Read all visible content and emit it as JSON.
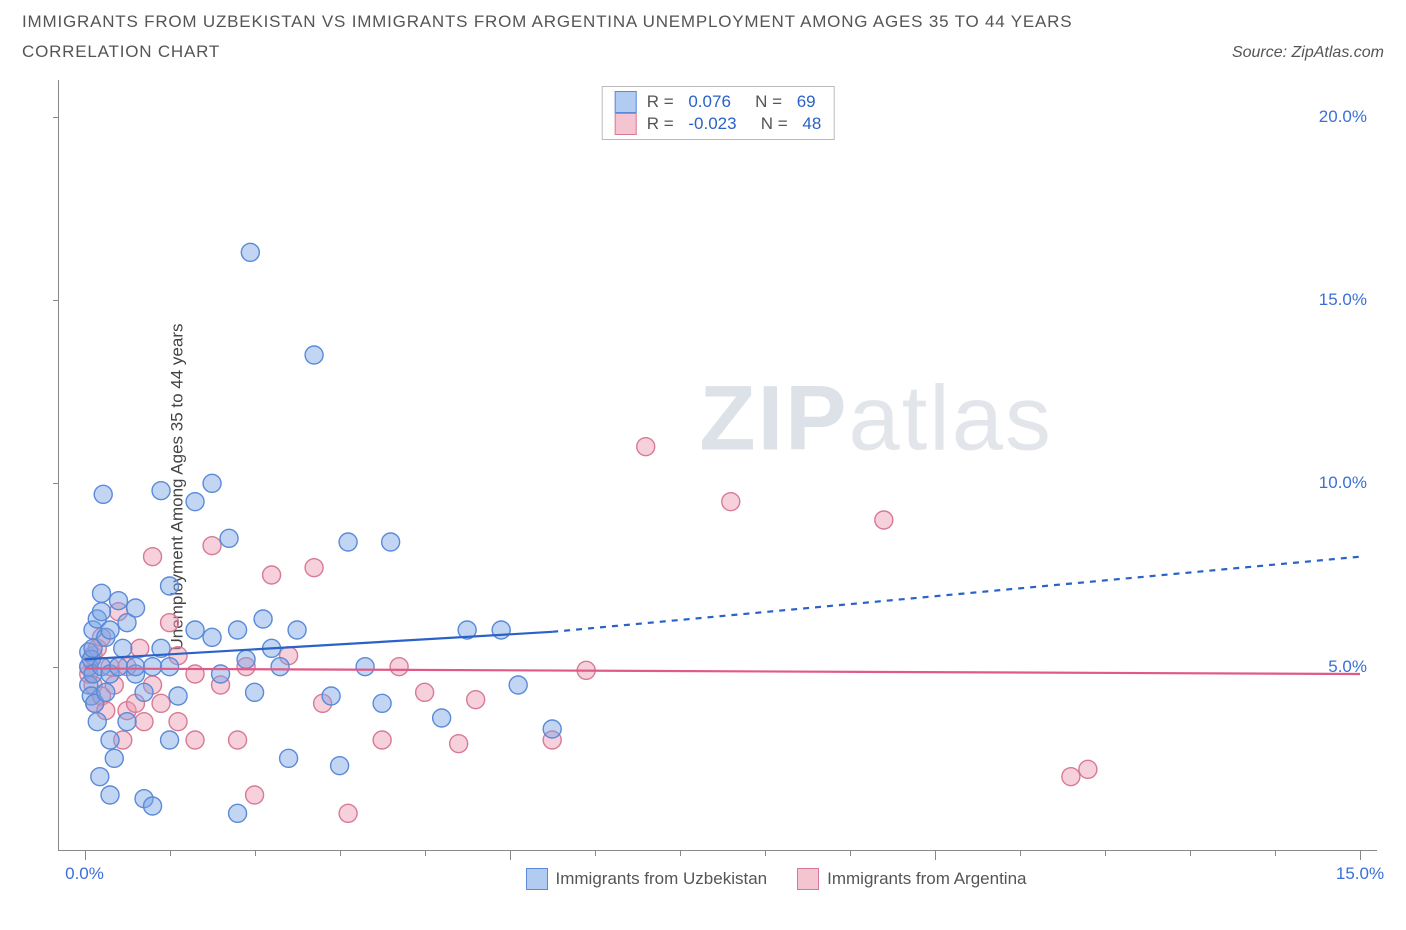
{
  "header": {
    "title_line1": "IMMIGRANTS FROM UZBEKISTAN VS IMMIGRANTS FROM ARGENTINA UNEMPLOYMENT AMONG AGES 35 TO 44 YEARS",
    "subtitle": "CORRELATION CHART",
    "source_prefix": "Source: ",
    "source_name": "ZipAtlas.com"
  },
  "axes": {
    "ylabel": "Unemployment Among Ages 35 to 44 years",
    "y_ticks": [
      {
        "value": 5.0,
        "label": "5.0%"
      },
      {
        "value": 10.0,
        "label": "10.0%"
      },
      {
        "value": 15.0,
        "label": "15.0%"
      },
      {
        "value": 20.0,
        "label": "20.0%"
      }
    ],
    "y_domain": [
      0.0,
      21.0
    ],
    "x_ticks": [
      {
        "value": 0.0,
        "label": "0.0%"
      },
      {
        "value": 5.0,
        "label": null
      },
      {
        "value": 10.0,
        "label": null
      },
      {
        "value": 15.0,
        "label": "15.0%"
      }
    ],
    "x_minor_ticks": [
      1,
      2,
      3,
      4,
      6,
      7,
      8,
      9,
      11,
      12,
      13,
      14
    ],
    "x_domain": [
      -0.3,
      15.2
    ]
  },
  "legend_stats": {
    "rows": [
      {
        "swatch": "blue",
        "r_label": "R = ",
        "r": "0.076",
        "n_label": "   N = ",
        "n": "69"
      },
      {
        "swatch": "pink",
        "r_label": "R = ",
        "r": "-0.023",
        "n_label": "   N = ",
        "n": "48"
      }
    ]
  },
  "bottom_legend": {
    "items": [
      {
        "swatch": "blue",
        "label": "Immigrants from Uzbekistan"
      },
      {
        "swatch": "pink",
        "label": "Immigrants from Argentina"
      }
    ]
  },
  "watermark": {
    "bold": "ZIP",
    "rest": "atlas"
  },
  "style": {
    "blue_fill": "rgba(120,165,230,0.45)",
    "blue_stroke": "#5a8ad8",
    "pink_fill": "rgba(235,150,175,0.45)",
    "pink_stroke": "#d87a95",
    "blue_line": "#2a62c8",
    "pink_line": "#e05a88",
    "marker_radius": 9,
    "marker_stroke_width": 1.4,
    "trend_line_width": 2.2,
    "dash_pattern": "6 6",
    "axis_color": "#888",
    "label_color": "#3a6fd8"
  },
  "trend_lines": {
    "blue_solid": {
      "x1": 0.0,
      "y1": 5.2,
      "x2": 5.5,
      "y2": 5.95
    },
    "blue_dashed": {
      "x1": 5.5,
      "y1": 5.95,
      "x2": 15.0,
      "y2": 8.0
    },
    "pink_solid": {
      "x1": 0.0,
      "y1": 4.95,
      "x2": 15.0,
      "y2": 4.8
    }
  },
  "series": {
    "blue": [
      [
        0.05,
        4.5
      ],
      [
        0.05,
        5.0
      ],
      [
        0.05,
        5.4
      ],
      [
        0.08,
        4.2
      ],
      [
        0.08,
        5.2
      ],
      [
        0.1,
        4.8
      ],
      [
        0.1,
        5.5
      ],
      [
        0.1,
        6.0
      ],
      [
        0.12,
        4.0
      ],
      [
        0.15,
        3.5
      ],
      [
        0.15,
        6.3
      ],
      [
        0.18,
        2.0
      ],
      [
        0.2,
        5.0
      ],
      [
        0.2,
        6.5
      ],
      [
        0.2,
        7.0
      ],
      [
        0.22,
        9.7
      ],
      [
        0.25,
        4.3
      ],
      [
        0.25,
        5.8
      ],
      [
        0.3,
        1.5
      ],
      [
        0.3,
        3.0
      ],
      [
        0.3,
        4.8
      ],
      [
        0.3,
        6.0
      ],
      [
        0.35,
        2.5
      ],
      [
        0.4,
        6.8
      ],
      [
        0.4,
        5.0
      ],
      [
        0.45,
        5.5
      ],
      [
        0.5,
        3.5
      ],
      [
        0.5,
        6.2
      ],
      [
        0.6,
        4.8
      ],
      [
        0.6,
        5.0
      ],
      [
        0.6,
        6.6
      ],
      [
        0.7,
        1.4
      ],
      [
        0.7,
        4.3
      ],
      [
        0.8,
        5.0
      ],
      [
        0.8,
        1.2
      ],
      [
        0.9,
        5.5
      ],
      [
        0.9,
        9.8
      ],
      [
        1.0,
        7.2
      ],
      [
        1.0,
        3.0
      ],
      [
        1.0,
        5.0
      ],
      [
        1.1,
        4.2
      ],
      [
        1.3,
        9.5
      ],
      [
        1.3,
        6.0
      ],
      [
        1.5,
        5.8
      ],
      [
        1.5,
        10.0
      ],
      [
        1.6,
        4.8
      ],
      [
        1.7,
        8.5
      ],
      [
        1.8,
        6.0
      ],
      [
        1.8,
        1.0
      ],
      [
        1.9,
        5.2
      ],
      [
        1.95,
        16.3
      ],
      [
        2.0,
        4.3
      ],
      [
        2.1,
        6.3
      ],
      [
        2.2,
        5.5
      ],
      [
        2.3,
        5.0
      ],
      [
        2.4,
        2.5
      ],
      [
        2.5,
        6.0
      ],
      [
        2.7,
        13.5
      ],
      [
        2.9,
        4.2
      ],
      [
        3.0,
        2.3
      ],
      [
        3.1,
        8.4
      ],
      [
        3.3,
        5.0
      ],
      [
        3.5,
        4.0
      ],
      [
        3.6,
        8.4
      ],
      [
        4.2,
        3.6
      ],
      [
        4.5,
        6.0
      ],
      [
        4.9,
        6.0
      ],
      [
        5.1,
        4.5
      ],
      [
        5.5,
        3.3
      ]
    ],
    "pink": [
      [
        0.05,
        4.8
      ],
      [
        0.05,
        5.0
      ],
      [
        0.1,
        4.5
      ],
      [
        0.1,
        5.3
      ],
      [
        0.12,
        4.0
      ],
      [
        0.15,
        5.5
      ],
      [
        0.2,
        4.2
      ],
      [
        0.2,
        5.8
      ],
      [
        0.25,
        3.8
      ],
      [
        0.3,
        5.0
      ],
      [
        0.35,
        4.5
      ],
      [
        0.4,
        6.5
      ],
      [
        0.45,
        3.0
      ],
      [
        0.5,
        3.8
      ],
      [
        0.5,
        5.0
      ],
      [
        0.6,
        4.0
      ],
      [
        0.65,
        5.5
      ],
      [
        0.7,
        3.5
      ],
      [
        0.8,
        4.5
      ],
      [
        0.8,
        8.0
      ],
      [
        0.9,
        4.0
      ],
      [
        1.0,
        6.2
      ],
      [
        1.1,
        3.5
      ],
      [
        1.1,
        5.3
      ],
      [
        1.3,
        3.0
      ],
      [
        1.3,
        4.8
      ],
      [
        1.5,
        8.3
      ],
      [
        1.6,
        4.5
      ],
      [
        1.8,
        3.0
      ],
      [
        1.9,
        5.0
      ],
      [
        2.0,
        1.5
      ],
      [
        2.2,
        7.5
      ],
      [
        2.4,
        5.3
      ],
      [
        2.7,
        7.7
      ],
      [
        2.8,
        4.0
      ],
      [
        3.1,
        1.0
      ],
      [
        3.5,
        3.0
      ],
      [
        3.7,
        5.0
      ],
      [
        4.0,
        4.3
      ],
      [
        4.4,
        2.9
      ],
      [
        4.6,
        4.1
      ],
      [
        5.5,
        3.0
      ],
      [
        5.9,
        4.9
      ],
      [
        6.6,
        11.0
      ],
      [
        7.6,
        9.5
      ],
      [
        9.4,
        9.0
      ],
      [
        11.6,
        2.0
      ],
      [
        11.8,
        2.2
      ]
    ]
  }
}
